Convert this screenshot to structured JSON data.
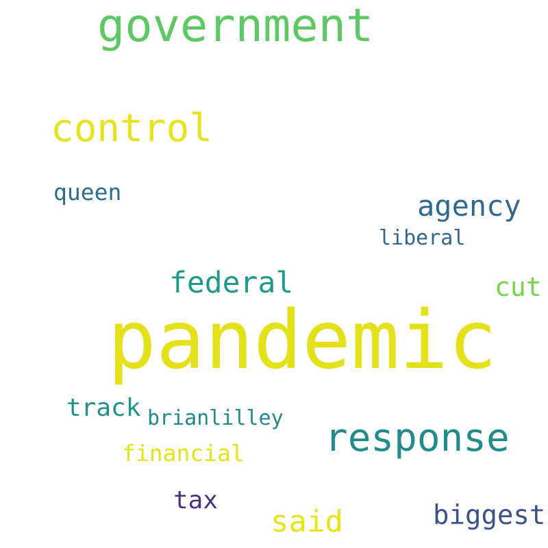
{
  "words": [
    {
      "text": "government",
      "color": "#5ec962"
    },
    {
      "text": "control",
      "color": "#e8e21f"
    },
    {
      "text": "queen",
      "color": "#2c6e8e"
    },
    {
      "text": "agency",
      "color": "#2f6990"
    },
    {
      "text": "liberal",
      "color": "#31678e"
    },
    {
      "text": "federal",
      "color": "#1f9a8a"
    },
    {
      "text": "cut",
      "color": "#7ad151"
    },
    {
      "text": "pandemic",
      "color": "#e4e11b"
    },
    {
      "text": "track",
      "color": "#21918c"
    },
    {
      "text": "brianlilley",
      "color": "#23898e"
    },
    {
      "text": "response",
      "color": "#228c8d"
    },
    {
      "text": "financial",
      "color": "#e3e418"
    },
    {
      "text": "tax",
      "color": "#46327e"
    },
    {
      "text": "said",
      "color": "#e7e419"
    },
    {
      "text": "biggest",
      "color": "#3b528b"
    }
  ]
}
